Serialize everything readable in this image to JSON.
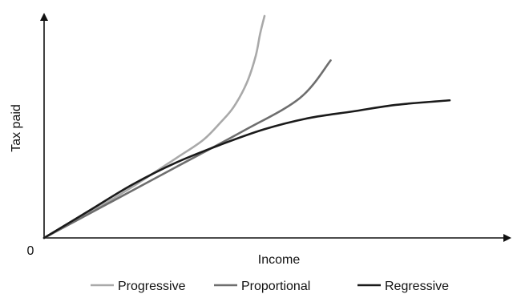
{
  "chart_data": {
    "type": "line",
    "xlabel": "Income",
    "ylabel": "Tax paid",
    "origin_label": "0",
    "xlim": [
      0,
      100
    ],
    "ylim": [
      0,
      100
    ],
    "grid": false,
    "legend_position": "bottom",
    "series": [
      {
        "name": "Progressive",
        "color": "#a9a9a9",
        "points": [
          [
            0,
            0
          ],
          [
            10,
            11
          ],
          [
            20,
            23
          ],
          [
            30,
            36
          ],
          [
            36,
            44
          ],
          [
            40,
            52
          ],
          [
            43,
            59
          ],
          [
            46,
            70
          ],
          [
            48,
            82
          ],
          [
            49,
            92
          ],
          [
            50,
            100
          ]
        ]
      },
      {
        "name": "Proportional",
        "color": "#6e6e6e",
        "points": [
          [
            0,
            0
          ],
          [
            15,
            16
          ],
          [
            30,
            32
          ],
          [
            45,
            48
          ],
          [
            58,
            63
          ],
          [
            65,
            80
          ]
        ]
      },
      {
        "name": "Regressive",
        "color": "#1a1a1a",
        "points": [
          [
            0,
            0
          ],
          [
            10,
            12
          ],
          [
            20,
            24
          ],
          [
            30,
            34
          ],
          [
            40,
            42
          ],
          [
            50,
            49
          ],
          [
            60,
            54
          ],
          [
            70,
            57
          ],
          [
            80,
            60
          ],
          [
            92,
            62
          ]
        ]
      }
    ]
  }
}
